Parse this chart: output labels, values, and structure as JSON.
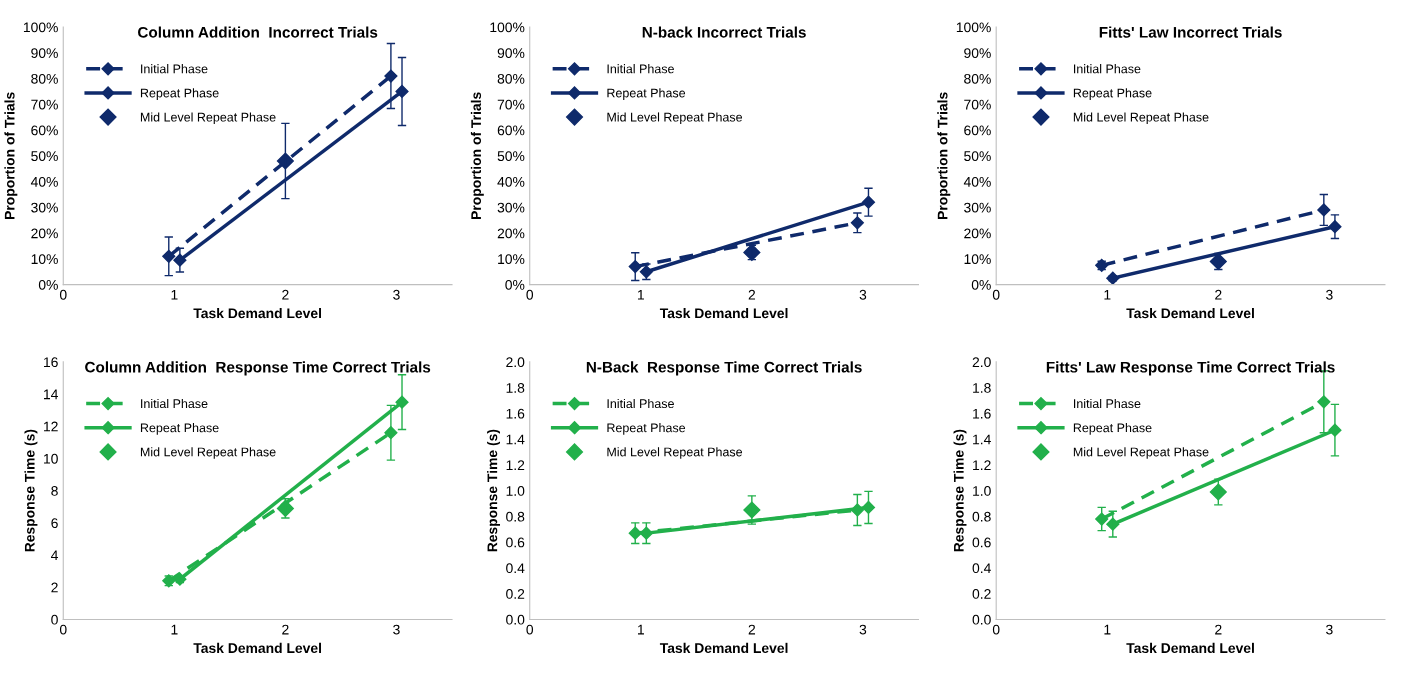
{
  "chart_data": [
    {
      "type": "line",
      "title": "Column Addition  Incorrect Trials",
      "xlabel": "Task Demand Level",
      "ylabel": "Proportion of Trials",
      "xlim": [
        0,
        3.5
      ],
      "xticks": [
        0,
        1,
        2,
        3
      ],
      "ylim": [
        0,
        100
      ],
      "yticks": [
        {
          "value": 0,
          "label": "0%"
        },
        {
          "value": 10,
          "label": "10%"
        },
        {
          "value": 20,
          "label": "20%"
        },
        {
          "value": 30,
          "label": "30%"
        },
        {
          "value": 40,
          "label": "40%"
        },
        {
          "value": 50,
          "label": "50%"
        },
        {
          "value": 60,
          "label": "60%"
        },
        {
          "value": 70,
          "label": "70%"
        },
        {
          "value": 80,
          "label": "80%"
        },
        {
          "value": 90,
          "label": "90%"
        },
        {
          "value": 100,
          "label": "100%"
        }
      ],
      "grid": false,
      "legend": "top left",
      "marker": "diamond",
      "series": [
        {
          "name": "Initial Phase",
          "type": "line",
          "line_style": "dashed",
          "color": "#0f2a6b",
          "x": [
            0.95,
            2.95
          ],
          "values": [
            11,
            81
          ],
          "errors": [
            7.5,
            12.6
          ]
        },
        {
          "name": "Repeat Phase",
          "type": "line",
          "line_style": "solid",
          "color": "#0f2a6b",
          "x": [
            1.05,
            3.05
          ],
          "values": [
            9.5,
            75
          ],
          "errors": [
            4.6,
            13.2
          ]
        },
        {
          "name": "Mid Level Repeat Phase",
          "type": "scatter",
          "color": "#0f2a6b",
          "x": [
            2
          ],
          "values": [
            48
          ],
          "errors": [
            14.6
          ]
        }
      ]
    },
    {
      "type": "line",
      "title": "N-back Incorrect Trials",
      "xlabel": "Task Demand Level",
      "ylabel": "Proportion of Trials",
      "xlim": [
        0,
        3.5
      ],
      "xticks": [
        0,
        1,
        2,
        3
      ],
      "ylim": [
        0,
        100
      ],
      "yticks": [
        {
          "value": 0,
          "label": "0%"
        },
        {
          "value": 10,
          "label": "10%"
        },
        {
          "value": 20,
          "label": "20%"
        },
        {
          "value": 30,
          "label": "30%"
        },
        {
          "value": 40,
          "label": "40%"
        },
        {
          "value": 50,
          "label": "50%"
        },
        {
          "value": 60,
          "label": "60%"
        },
        {
          "value": 70,
          "label": "70%"
        },
        {
          "value": 80,
          "label": "80%"
        },
        {
          "value": 90,
          "label": "90%"
        },
        {
          "value": 100,
          "label": "100%"
        }
      ],
      "grid": false,
      "legend": "top left",
      "marker": "diamond",
      "series": [
        {
          "name": "Initial Phase",
          "type": "line",
          "line_style": "dashed",
          "color": "#0f2a6b",
          "x": [
            0.95,
            2.95
          ],
          "values": [
            7,
            24
          ],
          "errors": [
            5.4,
            3.8
          ]
        },
        {
          "name": "Repeat Phase",
          "type": "line",
          "line_style": "solid",
          "color": "#0f2a6b",
          "x": [
            1.05,
            3.05
          ],
          "values": [
            5,
            32
          ],
          "errors": [
            3,
            5.4
          ]
        },
        {
          "name": "Mid Level Repeat Phase",
          "type": "scatter",
          "color": "#0f2a6b",
          "x": [
            2
          ],
          "values": [
            12.5
          ],
          "errors": [
            2.8
          ]
        }
      ]
    },
    {
      "type": "line",
      "title": "Fitts' Law Incorrect Trials",
      "xlabel": "Task Demand Level",
      "ylabel": "Proportion of Trials",
      "xlim": [
        0,
        3.5
      ],
      "xticks": [
        0,
        1,
        2,
        3
      ],
      "ylim": [
        0,
        100
      ],
      "yticks": [
        {
          "value": 0,
          "label": "0%"
        },
        {
          "value": 10,
          "label": "10%"
        },
        {
          "value": 20,
          "label": "20%"
        },
        {
          "value": 30,
          "label": "30%"
        },
        {
          "value": 40,
          "label": "40%"
        },
        {
          "value": 50,
          "label": "50%"
        },
        {
          "value": 60,
          "label": "60%"
        },
        {
          "value": 70,
          "label": "70%"
        },
        {
          "value": 80,
          "label": "80%"
        },
        {
          "value": 90,
          "label": "90%"
        },
        {
          "value": 100,
          "label": "100%"
        }
      ],
      "grid": false,
      "legend": "top left",
      "marker": "diamond",
      "series": [
        {
          "name": "Initial Phase",
          "type": "line",
          "line_style": "dashed",
          "color": "#0f2a6b",
          "x": [
            0.95,
            2.95
          ],
          "values": [
            7.5,
            29
          ],
          "errors": [
            1.6,
            6
          ]
        },
        {
          "name": "Repeat Phase",
          "type": "line",
          "line_style": "solid",
          "color": "#0f2a6b",
          "x": [
            1.05,
            3.05
          ],
          "values": [
            2.5,
            22.5
          ],
          "errors": [
            1,
            4.6
          ]
        },
        {
          "name": "Mid Level Repeat Phase",
          "type": "scatter",
          "color": "#0f2a6b",
          "x": [
            2
          ],
          "values": [
            9
          ],
          "errors": [
            3.1
          ]
        }
      ]
    },
    {
      "type": "line",
      "title": "Column Addition  Response Time Correct Trials",
      "xlabel": "Task Demand Level",
      "ylabel": "Response Time (s)",
      "xlim": [
        0,
        3.5
      ],
      "xticks": [
        0,
        1,
        2,
        3
      ],
      "ylim": [
        0,
        16
      ],
      "yticks": [
        0,
        2,
        4,
        6,
        8,
        10,
        12,
        14,
        16
      ],
      "grid": false,
      "legend": "top left",
      "marker": "diamond",
      "series": [
        {
          "name": "Initial Phase",
          "type": "line",
          "line_style": "dashed",
          "color": "#22b04b",
          "x": [
            0.95,
            2.95
          ],
          "values": [
            2.4,
            11.6
          ],
          "errors": [
            0.3,
            1.7
          ]
        },
        {
          "name": "Repeat Phase",
          "type": "line",
          "line_style": "solid",
          "color": "#22b04b",
          "x": [
            1.05,
            3.05
          ],
          "values": [
            2.5,
            13.5
          ],
          "errors": [
            0.2,
            1.7
          ]
        },
        {
          "name": "Mid Level Repeat Phase",
          "type": "scatter",
          "color": "#22b04b",
          "x": [
            2
          ],
          "values": [
            6.9
          ],
          "errors": [
            0.6
          ]
        }
      ]
    },
    {
      "type": "line",
      "title": "N-Back  Response Time Correct Trials",
      "xlabel": "Task Demand Level",
      "ylabel": "Response Time (s)",
      "xlim": [
        0,
        3.5
      ],
      "xticks": [
        0,
        1,
        2,
        3
      ],
      "ylim": [
        0,
        2
      ],
      "yticks": [
        {
          "value": 0,
          "label": "0.0"
        },
        {
          "value": 0.2,
          "label": "0.2"
        },
        {
          "value": 0.4,
          "label": "0.4"
        },
        {
          "value": 0.6,
          "label": "0.6"
        },
        {
          "value": 0.8,
          "label": "0.8"
        },
        {
          "value": 1,
          "label": "1.0"
        },
        {
          "value": 1.2,
          "label": "1.2"
        },
        {
          "value": 1.4,
          "label": "1.4"
        },
        {
          "value": 1.6,
          "label": "1.6"
        },
        {
          "value": 1.8,
          "label": "1.8"
        },
        {
          "value": 2,
          "label": "2.0"
        }
      ],
      "grid": false,
      "legend": "top left",
      "marker": "diamond",
      "series": [
        {
          "name": "Initial Phase",
          "type": "line",
          "line_style": "dashed",
          "color": "#22b04b",
          "x": [
            0.95,
            2.95
          ],
          "values": [
            0.67,
            0.85
          ],
          "errors": [
            0.08,
            0.12
          ]
        },
        {
          "name": "Repeat Phase",
          "type": "line",
          "line_style": "solid",
          "color": "#22b04b",
          "x": [
            1.05,
            3.05
          ],
          "values": [
            0.67,
            0.87
          ],
          "errors": [
            0.08,
            0.125
          ]
        },
        {
          "name": "Mid Level Repeat Phase",
          "type": "scatter",
          "color": "#22b04b",
          "x": [
            2
          ],
          "values": [
            0.85
          ],
          "errors": [
            0.11
          ]
        }
      ]
    },
    {
      "type": "line",
      "title": "Fitts' Law Response Time Correct Trials",
      "xlabel": "Task Demand Level",
      "ylabel": "Response Time (s)",
      "xlim": [
        0,
        3.5
      ],
      "xticks": [
        0,
        1,
        2,
        3
      ],
      "ylim": [
        0,
        2
      ],
      "yticks": [
        {
          "value": 0,
          "label": "0.0"
        },
        {
          "value": 0.2,
          "label": "0.2"
        },
        {
          "value": 0.4,
          "label": "0.4"
        },
        {
          "value": 0.6,
          "label": "0.6"
        },
        {
          "value": 0.8,
          "label": "0.8"
        },
        {
          "value": 1,
          "label": "1.0"
        },
        {
          "value": 1.2,
          "label": "1.2"
        },
        {
          "value": 1.4,
          "label": "1.4"
        },
        {
          "value": 1.6,
          "label": "1.6"
        },
        {
          "value": 1.8,
          "label": "1.8"
        },
        {
          "value": 2,
          "label": "2.0"
        }
      ],
      "grid": false,
      "legend": "top left",
      "marker": "diamond",
      "series": [
        {
          "name": "Initial Phase",
          "type": "line",
          "line_style": "dashed",
          "color": "#22b04b",
          "x": [
            0.95,
            2.95
          ],
          "values": [
            0.78,
            1.69
          ],
          "errors": [
            0.09,
            0.24
          ]
        },
        {
          "name": "Repeat Phase",
          "type": "line",
          "line_style": "solid",
          "color": "#22b04b",
          "x": [
            1.05,
            3.05
          ],
          "values": [
            0.74,
            1.47
          ],
          "errors": [
            0.1,
            0.2
          ]
        },
        {
          "name": "Mid Level Repeat Phase",
          "type": "scatter",
          "color": "#22b04b",
          "x": [
            2
          ],
          "values": [
            0.99
          ],
          "errors": [
            0.1
          ]
        }
      ]
    }
  ]
}
